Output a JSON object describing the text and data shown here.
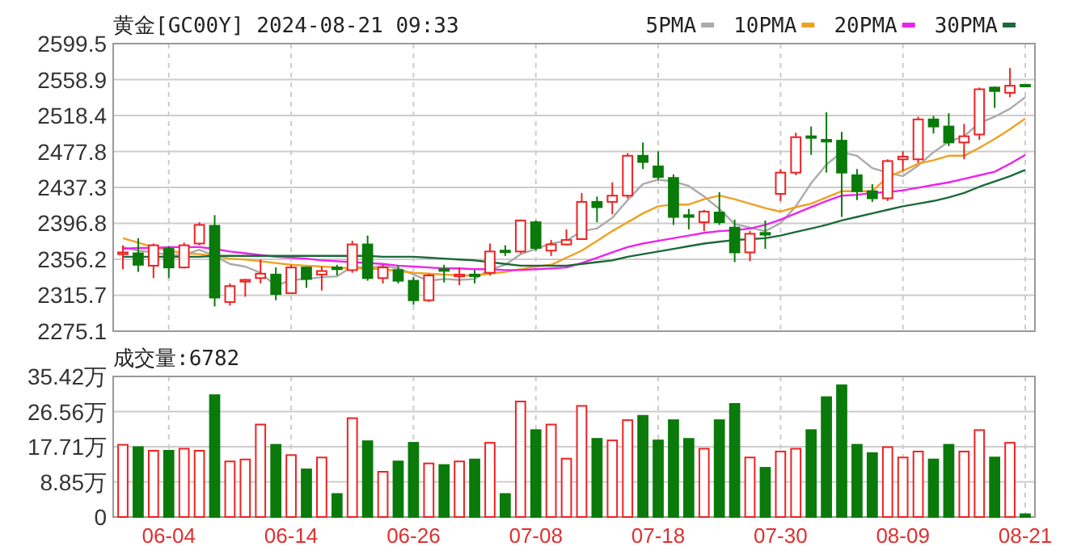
{
  "chart_data": [
    {
      "type": "candlestick",
      "title": "黄金[GC00Y] 2024-08-21 09:33",
      "legend": "top right",
      "grid": true,
      "tick_labels": "y",
      "line_style": "solid",
      "categories": [
        null,
        null,
        null,
        null,
        null,
        null,
        null,
        null,
        null,
        null,
        null,
        null,
        null,
        null,
        null,
        null,
        null,
        null,
        null,
        null,
        null,
        null,
        null,
        null,
        null,
        null,
        null,
        null,
        null,
        null,
        null,
        null,
        null,
        null,
        null,
        null,
        null,
        null,
        null,
        null,
        null,
        null,
        null,
        null,
        null,
        null,
        null,
        null,
        null,
        null,
        null,
        null,
        null,
        null,
        null,
        null,
        null,
        null,
        null,
        null
      ],
      "ylim": [
        2275.1,
        2599.5
      ],
      "yticks": [
        2275.1,
        2315.7,
        2356.2,
        2396.8,
        2437.3,
        2477.8,
        2518.4,
        2558.9,
        2599.5
      ],
      "ohlc": [
        [
          2362,
          2372,
          2345,
          2364
        ],
        [
          2363,
          2380,
          2342,
          2350
        ],
        [
          2349,
          2374,
          2335,
          2372
        ],
        [
          2368,
          2371,
          2335,
          2347
        ],
        [
          2347,
          2375,
          2346,
          2372
        ],
        [
          2374,
          2398,
          2372,
          2395
        ],
        [
          2394,
          2406,
          2303,
          2313
        ],
        [
          2308,
          2329,
          2304,
          2326
        ],
        [
          2331,
          2334,
          2314,
          2333
        ],
        [
          2335,
          2356,
          2329,
          2340
        ],
        [
          2339,
          2347,
          2310,
          2317
        ],
        [
          2318,
          2350,
          2317,
          2347
        ],
        [
          2347,
          2348,
          2324,
          2334
        ],
        [
          2339,
          2348,
          2321,
          2343
        ],
        [
          2347,
          2350,
          2338,
          2345
        ],
        [
          2344,
          2377,
          2341,
          2373
        ],
        [
          2373,
          2383,
          2332,
          2335
        ],
        [
          2335,
          2350,
          2329,
          2347
        ],
        [
          2344,
          2349,
          2329,
          2332
        ],
        [
          2332,
          2336,
          2305,
          2310
        ],
        [
          2310,
          2340,
          2308,
          2338
        ],
        [
          2345,
          2350,
          2330,
          2344
        ],
        [
          2337,
          2347,
          2327,
          2339
        ],
        [
          2339,
          2344,
          2329,
          2338
        ],
        [
          2341,
          2374,
          2338,
          2365
        ],
        [
          2366,
          2372,
          2360,
          2365
        ],
        [
          2365,
          2401,
          2363,
          2400
        ],
        [
          2398,
          2400,
          2366,
          2369
        ],
        [
          2366,
          2378,
          2360,
          2373
        ],
        [
          2373,
          2390,
          2372,
          2378
        ],
        [
          2379,
          2431,
          2378,
          2421
        ],
        [
          2421,
          2427,
          2398,
          2415
        ],
        [
          2421,
          2443,
          2407,
          2428
        ],
        [
          2428,
          2476,
          2425,
          2473
        ],
        [
          2473,
          2488,
          2458,
          2466
        ],
        [
          2461,
          2478,
          2446,
          2449
        ],
        [
          2448,
          2452,
          2395,
          2404
        ],
        [
          2406,
          2413,
          2390,
          2404
        ],
        [
          2398,
          2412,
          2388,
          2410
        ],
        [
          2409,
          2432,
          2395,
          2398
        ],
        [
          2392,
          2401,
          2353,
          2364
        ],
        [
          2364,
          2388,
          2354,
          2385
        ],
        [
          2386,
          2400,
          2368,
          2384
        ],
        [
          2430,
          2458,
          2422,
          2454
        ],
        [
          2454,
          2499,
          2451,
          2494
        ],
        [
          2495,
          2506,
          2474,
          2494
        ],
        [
          2491,
          2522,
          2454,
          2489
        ],
        [
          2490,
          2500,
          2404,
          2454
        ],
        [
          2451,
          2458,
          2423,
          2433
        ],
        [
          2433,
          2441,
          2421,
          2425
        ],
        [
          2425,
          2469,
          2422,
          2467
        ],
        [
          2469,
          2478,
          2456,
          2472
        ],
        [
          2469,
          2517,
          2465,
          2514
        ],
        [
          2514,
          2518,
          2498,
          2506
        ],
        [
          2506,
          2521,
          2484,
          2488
        ],
        [
          2488,
          2509,
          2469,
          2495
        ],
        [
          2497,
          2550,
          2491,
          2548
        ],
        [
          2550,
          2551,
          2527,
          2546
        ],
        [
          2544,
          2572,
          2539,
          2552
        ],
        [
          2553,
          2553,
          2551,
          2552
        ]
      ],
      "colors": [
        "#ee2222",
        "#0a7a0a",
        "#ee2222",
        "#0a7a0a",
        "#ee2222",
        "#ee2222",
        "#0a7a0a",
        "#ee2222",
        "#ee2222",
        "#ee2222",
        "#0a7a0a",
        "#ee2222",
        "#0a7a0a",
        "#ee2222",
        "#0a7a0a",
        "#ee2222",
        "#0a7a0a",
        "#ee2222",
        "#0a7a0a",
        "#0a7a0a",
        "#ee2222",
        "#0a7a0a",
        "#ee2222",
        "#0a7a0a",
        "#ee2222",
        "#0a7a0a",
        "#ee2222",
        "#0a7a0a",
        "#ee2222",
        "#ee2222",
        "#ee2222",
        "#0a7a0a",
        "#ee2222",
        "#ee2222",
        "#0a7a0a",
        "#0a7a0a",
        "#0a7a0a",
        "#0a7a0a",
        "#ee2222",
        "#0a7a0a",
        "#0a7a0a",
        "#ee2222",
        "#0a7a0a",
        "#ee2222",
        "#ee2222",
        "#0a7a0a",
        "#0a7a0a",
        "#0a7a0a",
        "#0a7a0a",
        "#0a7a0a",
        "#ee2222",
        "#ee2222",
        "#ee2222",
        "#0a7a0a",
        "#0a7a0a",
        "#ee2222",
        "#ee2222",
        "#0a7a0a",
        "#ee2222",
        "#0a7a0a"
      ],
      "series": [
        {
          "name": "5PMA",
          "type": "line",
          "color": "#aaaaaa",
          "values": [
            2370,
            2366,
            2364,
            2361,
            2361,
            2367,
            2360,
            2351,
            2348,
            2341,
            2326,
            2333,
            2334,
            2336,
            2337,
            2348,
            2346,
            2349,
            2346,
            2339,
            2332,
            2334,
            2333,
            2334,
            2345,
            2350,
            2362,
            2368,
            2374,
            2377,
            2388,
            2391,
            2403,
            2423,
            2441,
            2446,
            2444,
            2439,
            2427,
            2413,
            2396,
            2392,
            2388,
            2397,
            2416,
            2442,
            2463,
            2477,
            2473,
            2459,
            2454,
            2450,
            2462,
            2477,
            2489,
            2495,
            2510,
            2517,
            2526,
            2539
          ]
        },
        {
          "name": "10PMA",
          "type": "line",
          "color": "#f0a020",
          "values": [
            2380,
            2375,
            2370,
            2366,
            2363,
            2362,
            2360,
            2357,
            2356,
            2354,
            2352,
            2350,
            2349,
            2348,
            2347,
            2346,
            2346,
            2345,
            2343,
            2341,
            2340,
            2339,
            2338,
            2338,
            2340,
            2342,
            2345,
            2348,
            2350,
            2358,
            2366,
            2377,
            2388,
            2398,
            2408,
            2416,
            2418,
            2418,
            2424,
            2428,
            2424,
            2419,
            2414,
            2410,
            2415,
            2419,
            2426,
            2433,
            2433,
            2433,
            2449,
            2456,
            2464,
            2468,
            2473,
            2473,
            2482,
            2492,
            2503,
            2515
          ]
        },
        {
          "name": "20PMA",
          "type": "line",
          "color": "#ee22ee",
          "values": [
            2368,
            2369,
            2369,
            2370,
            2370,
            2370,
            2368,
            2365,
            2363,
            2361,
            2359,
            2358,
            2357,
            2355,
            2354,
            2353,
            2352,
            2351,
            2349,
            2348,
            2347,
            2346,
            2346,
            2345,
            2345,
            2344,
            2344,
            2345,
            2346,
            2347,
            2352,
            2358,
            2364,
            2370,
            2374,
            2377,
            2380,
            2383,
            2386,
            2388,
            2389,
            2391,
            2395,
            2401,
            2408,
            2415,
            2422,
            2428,
            2429,
            2431,
            2432,
            2434,
            2437,
            2440,
            2443,
            2447,
            2451,
            2455,
            2464,
            2474
          ]
        },
        {
          "name": "30PMA",
          "type": "line",
          "color": "#1a6a3a",
          "values": [
            2359,
            2359,
            2359,
            2359,
            2359,
            2359,
            2360,
            2360,
            2360,
            2360,
            2360,
            2360,
            2360,
            2360,
            2360,
            2360,
            2360,
            2359,
            2359,
            2359,
            2358,
            2357,
            2356,
            2355,
            2353,
            2351,
            2349,
            2349,
            2349,
            2349,
            2351,
            2353,
            2355,
            2359,
            2362,
            2365,
            2368,
            2371,
            2374,
            2376,
            2378,
            2379,
            2380,
            2383,
            2387,
            2391,
            2395,
            2400,
            2404,
            2408,
            2412,
            2416,
            2419,
            2422,
            2426,
            2431,
            2438,
            2444,
            2450,
            2457
          ]
        }
      ]
    },
    {
      "type": "bar",
      "title": "成交量:6782",
      "grid": true,
      "categories": [
        null,
        null,
        null,
        "06-04",
        null,
        null,
        null,
        null,
        null,
        null,
        null,
        "06-14",
        null,
        null,
        null,
        null,
        null,
        null,
        null,
        "06-26",
        null,
        null,
        null,
        null,
        null,
        null,
        null,
        "07-08",
        null,
        null,
        null,
        null,
        null,
        null,
        null,
        "07-18",
        null,
        null,
        null,
        null,
        null,
        null,
        null,
        "07-30",
        null,
        null,
        null,
        null,
        null,
        null,
        null,
        "08-09",
        null,
        null,
        null,
        null,
        null,
        null,
        null,
        "08-21"
      ],
      "ylim": [
        0,
        35.42
      ],
      "yticks": [
        0,
        {
          "value": 8.85,
          "label": "8.85万"
        },
        {
          "value": 17.71,
          "label": "17.71万"
        },
        {
          "value": 26.56,
          "label": "26.56万"
        },
        {
          "value": 35.42,
          "label": "35.42万"
        }
      ],
      "values": [
        18.2,
        17.6,
        16.7,
        16.7,
        17.2,
        16.7,
        30.7,
        14.0,
        14.5,
        23.3,
        18.2,
        15.6,
        12.0,
        15.0,
        5.8,
        24.9,
        19.1,
        11.4,
        14.0,
        18.7,
        13.5,
        13.1,
        14.0,
        14.5,
        18.7,
        5.8,
        29.1,
        21.9,
        23.3,
        14.7,
        28.0,
        19.7,
        19.3,
        24.4,
        25.5,
        19.3,
        24.4,
        19.7,
        17.2,
        24.4,
        28.5,
        15.0,
        12.4,
        16.5,
        17.2,
        21.9,
        30.2,
        33.2,
        18.2,
        16.1,
        17.6,
        15.0,
        16.5,
        14.5,
        18.2,
        16.5,
        21.9,
        15.0,
        18.7,
        0.7
      ],
      "colors": [
        "#ee2222",
        "#0a7a0a",
        "#ee2222",
        "#0a7a0a",
        "#ee2222",
        "#ee2222",
        "#0a7a0a",
        "#ee2222",
        "#ee2222",
        "#ee2222",
        "#0a7a0a",
        "#ee2222",
        "#0a7a0a",
        "#ee2222",
        "#0a7a0a",
        "#ee2222",
        "#0a7a0a",
        "#ee2222",
        "#0a7a0a",
        "#0a7a0a",
        "#ee2222",
        "#0a7a0a",
        "#ee2222",
        "#0a7a0a",
        "#ee2222",
        "#0a7a0a",
        "#ee2222",
        "#0a7a0a",
        "#ee2222",
        "#ee2222",
        "#ee2222",
        "#0a7a0a",
        "#ee2222",
        "#ee2222",
        "#0a7a0a",
        "#0a7a0a",
        "#0a7a0a",
        "#0a7a0a",
        "#ee2222",
        "#0a7a0a",
        "#0a7a0a",
        "#ee2222",
        "#0a7a0a",
        "#ee2222",
        "#ee2222",
        "#0a7a0a",
        "#0a7a0a",
        "#0a7a0a",
        "#0a7a0a",
        "#0a7a0a",
        "#ee2222",
        "#ee2222",
        "#ee2222",
        "#0a7a0a",
        "#0a7a0a",
        "#ee2222",
        "#ee2222",
        "#0a7a0a",
        "#ee2222",
        "#0a7a0a"
      ]
    }
  ]
}
